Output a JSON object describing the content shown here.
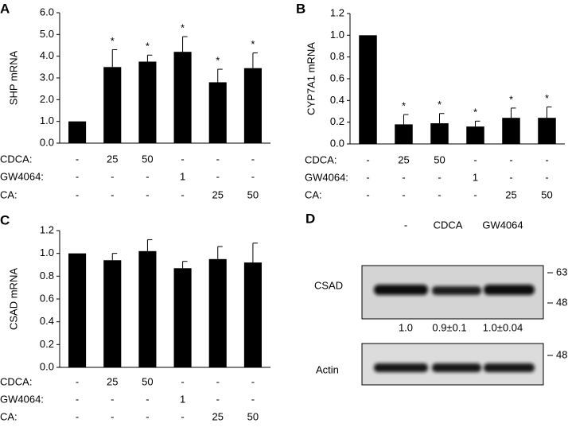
{
  "chart_data": [
    {
      "type": "bar",
      "panel": "A",
      "ylabel": "SHP mRNA",
      "color": "#000000",
      "values": [
        1.0,
        3.5,
        3.75,
        4.2,
        2.8,
        3.45
      ],
      "errors": [
        0,
        0.8,
        0.3,
        0.7,
        0.6,
        0.7
      ],
      "significance": [
        null,
        "*",
        "*",
        "*",
        "*",
        "*"
      ],
      "ylim": [
        0,
        6
      ],
      "yticks": [
        {
          "value": 0,
          "label": "0.0"
        },
        {
          "value": 1,
          "label": "1.0"
        },
        {
          "value": 2,
          "label": "2.0"
        },
        {
          "value": 3,
          "label": "3.0"
        },
        {
          "value": 4,
          "label": "4.0"
        },
        {
          "value": 5,
          "label": "5.0"
        },
        {
          "value": 6,
          "label": "6.0"
        }
      ],
      "treatments": [
        {
          "label": "CDCA:",
          "values": [
            "-",
            "25",
            "50",
            "-",
            "-",
            "-"
          ]
        },
        {
          "label": "GW4064:",
          "values": [
            "-",
            "-",
            "-",
            "1",
            "-",
            "-"
          ]
        },
        {
          "label": "CA:",
          "values": [
            "-",
            "-",
            "-",
            "-",
            "25",
            "50"
          ]
        }
      ]
    },
    {
      "type": "bar",
      "panel": "B",
      "ylabel": "CYP7A1 mRNA",
      "color": "#000000",
      "values": [
        1.0,
        0.18,
        0.19,
        0.16,
        0.24,
        0.24
      ],
      "errors": [
        0,
        0.09,
        0.09,
        0.05,
        0.09,
        0.1
      ],
      "significance": [
        null,
        "*",
        "*",
        "*",
        "*",
        "*"
      ],
      "ylim": [
        0,
        1.2
      ],
      "yticks": [
        {
          "value": 0,
          "label": "0.0"
        },
        0.2,
        0.4,
        0.6,
        0.8,
        {
          "value": 1,
          "label": "1.0"
        },
        1.2
      ],
      "treatments": [
        {
          "label": "CDCA:",
          "values": [
            "-",
            "25",
            "50",
            "-",
            "-",
            "-"
          ]
        },
        {
          "label": "GW4064:",
          "values": [
            "-",
            "-",
            "-",
            "1",
            "-",
            "-"
          ]
        },
        {
          "label": "CA:",
          "values": [
            "-",
            "-",
            "-",
            "-",
            "25",
            "50"
          ]
        }
      ]
    },
    {
      "type": "bar",
      "panel": "C",
      "ylabel": "CSAD mRNA",
      "color": "#000000",
      "values": [
        1.0,
        0.94,
        1.02,
        0.87,
        0.95,
        0.92
      ],
      "errors": [
        0,
        0.06,
        0.1,
        0.06,
        0.11,
        0.17
      ],
      "ylim": [
        0,
        1.2
      ],
      "yticks": [
        {
          "value": 0,
          "label": "0.0"
        },
        0.2,
        0.4,
        0.6,
        0.8,
        {
          "value": 1,
          "label": "1.0"
        },
        1.2
      ],
      "treatments": [
        {
          "label": "CDCA:",
          "values": [
            "-",
            "25",
            "50",
            "-",
            "-",
            "-"
          ]
        },
        {
          "label": "GW4064:",
          "values": [
            "-",
            "-",
            "-",
            "1",
            "-",
            "-"
          ]
        },
        {
          "label": "CA:",
          "values": [
            "-",
            "-",
            "-",
            "-",
            "25",
            "50"
          ]
        }
      ]
    }
  ],
  "blot": {
    "panel": "D",
    "lanes": [
      "-",
      "CDCA",
      "GW4064"
    ],
    "rows": [
      "CSAD",
      "Actin"
    ],
    "markers": [
      "63",
      "48",
      "48"
    ],
    "quantification": [
      "1.0",
      "0.9±0.1",
      "1.0±0.04"
    ]
  }
}
